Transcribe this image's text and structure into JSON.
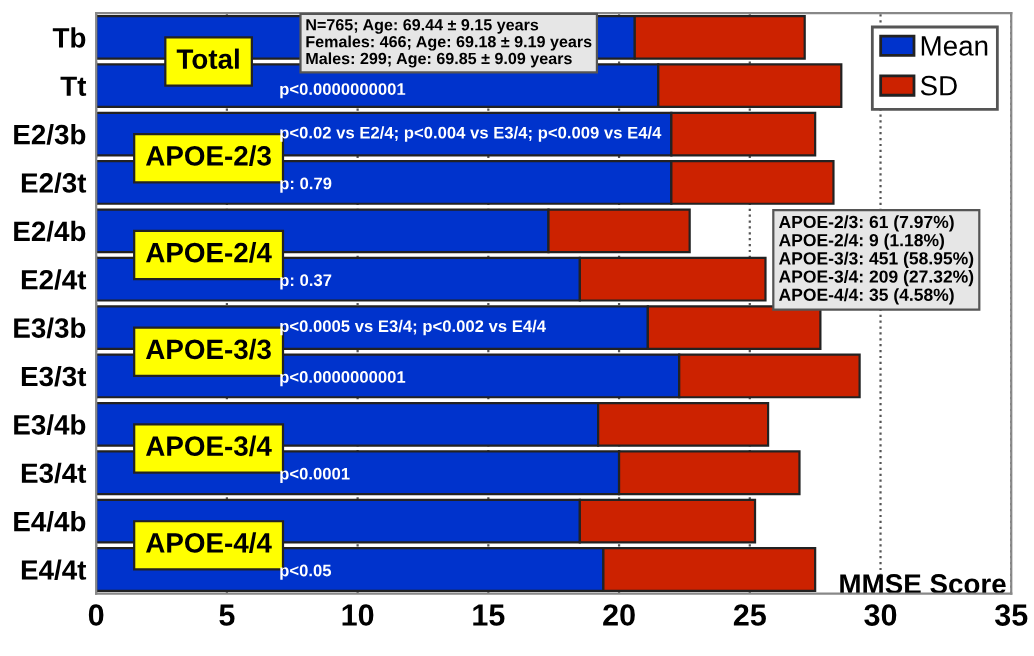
{
  "chart_data": {
    "type": "bar",
    "orientation": "horizontal",
    "stacked": true,
    "categories": [
      "Tb",
      "Tt",
      "E2/3b",
      "E2/3t",
      "E2/4b",
      "E2/4t",
      "E3/3b",
      "E3/3t",
      "E3/4b",
      "E3/4t",
      "E4/4b",
      "E4/4t"
    ],
    "series": [
      {
        "name": "Mean",
        "color": "#0033cc",
        "values": [
          20.6,
          21.5,
          22.0,
          22.0,
          17.3,
          18.5,
          21.1,
          22.3,
          19.2,
          20.0,
          18.5,
          19.4
        ]
      },
      {
        "name": "SD",
        "color": "#cc2200",
        "values": [
          6.5,
          7.0,
          5.5,
          6.2,
          5.4,
          7.1,
          6.6,
          6.9,
          6.5,
          6.9,
          6.7,
          8.1
        ]
      }
    ],
    "xlabel": "MMSE Score",
    "xlim": [
      0,
      35
    ],
    "xticks": [
      0,
      5,
      10,
      15,
      20,
      25,
      30,
      35
    ],
    "grid": "x",
    "legend": "top right",
    "annotations": [
      "Total",
      "p<0.0000000001",
      "N=765; Age: 69.44 ± 9.15 years\nFemales: 466; Age: 69.18 ± 9.19 years\nMales: 299; Age: 69.85 ± 9.09 years",
      "APOE-2/3",
      "p<0.02 vs E2/4; p<0.004 vs E3/4; p<0.009 vs E4/4",
      "p: 0.79",
      "APOE-2/4",
      "p: 0.37",
      "APOE-3/3",
      "p<0.0005 vs E3/4; p<0.002 vs E4/4",
      "p<0.0000000001",
      "APOE-3/4",
      "p<0.0001",
      "APOE-4/4",
      "p<0.05",
      "APOE-2/3: 61 (7.97%)\nAPOE-2/4: 9 (1.18%)\nAPOE-3/3: 451 (58.95%)\nAPOE-3/4: 209 (27.32%)\nAPOE-4/4: 35 (4.58%)"
    ]
  }
}
